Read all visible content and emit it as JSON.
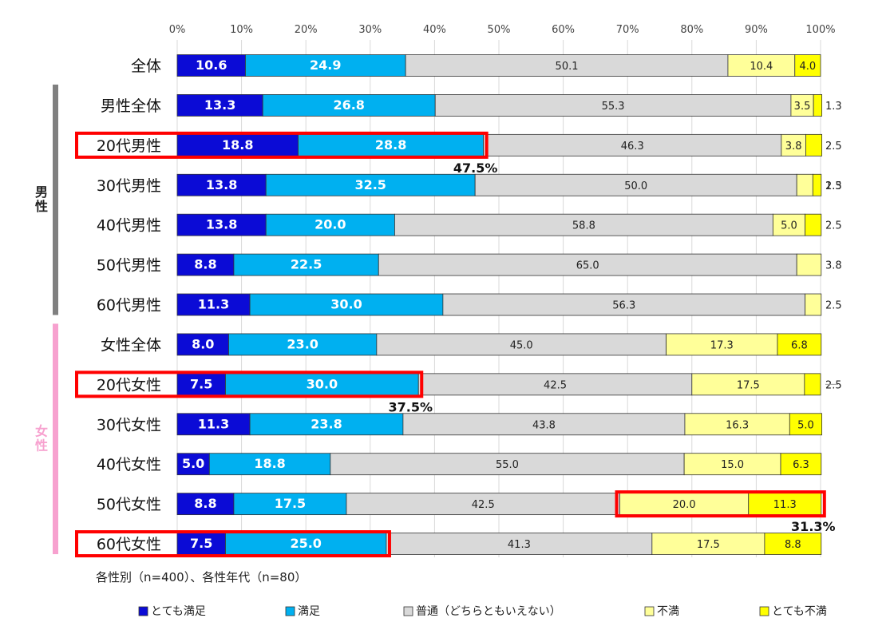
{
  "chart_data": {
    "type": "bar",
    "stacked": true,
    "orientation": "horizontal",
    "percent_axis": {
      "min": 0,
      "max": 100,
      "ticks": [
        "0%",
        "10%",
        "20%",
        "30%",
        "40%",
        "50%",
        "60%",
        "70%",
        "80%",
        "90%",
        "100%"
      ]
    },
    "categories": [
      "全体",
      "男性全体",
      "20代男性",
      "30代男性",
      "40代男性",
      "50代男性",
      "60代男性",
      "女性全体",
      "20代女性",
      "30代女性",
      "40代女性",
      "50代女性",
      "60代女性"
    ],
    "series": [
      {
        "name": "とても満足",
        "color": "#0b0bd6",
        "values": [
          10.6,
          13.3,
          18.8,
          13.8,
          13.8,
          8.8,
          11.3,
          8.0,
          7.5,
          11.3,
          5.0,
          8.8,
          7.5
        ],
        "labels": [
          "10.6",
          "13.3",
          "18.8",
          "13.8",
          "13.8",
          "8.8",
          "11.3",
          "8.0",
          "7.5",
          "11.3",
          "5.0",
          "8.8",
          "7.5"
        ]
      },
      {
        "name": "満足",
        "color": "#00b0f0",
        "values": [
          24.9,
          26.8,
          28.8,
          32.5,
          20.0,
          22.5,
          30.0,
          23.0,
          30.0,
          23.8,
          18.8,
          17.5,
          25.0
        ],
        "labels": [
          "24.9",
          "26.8",
          "28.8",
          "32.5",
          "20.0",
          "22.5",
          "30.0",
          "23.0",
          "30.0",
          "23.8",
          "18.8",
          "17.5",
          "25.0"
        ]
      },
      {
        "name": "普通（どちらともいえない）",
        "color": "#d9d9d9",
        "values": [
          50.1,
          55.3,
          46.3,
          50.0,
          58.8,
          65.0,
          56.3,
          45.0,
          42.5,
          43.8,
          55.0,
          42.5,
          41.3
        ],
        "labels": [
          "50.1",
          "55.3",
          "46.3",
          "50.0",
          "58.8",
          "65.0",
          "56.3",
          "45.0",
          "42.5",
          "43.8",
          "55.0",
          "42.5",
          "41.3"
        ]
      },
      {
        "name": "不満",
        "color": "#ffff99",
        "values": [
          10.4,
          3.5,
          3.8,
          2.5,
          5.0,
          3.8,
          2.5,
          17.3,
          17.5,
          16.3,
          15.0,
          20.0,
          17.5
        ],
        "labels": [
          "10.4",
          "3.5",
          "3.8",
          "2.5",
          "5.0",
          "3.8",
          "2.5",
          "17.3",
          "17.5",
          "16.3",
          "15.0",
          "20.0",
          "17.5"
        ]
      },
      {
        "name": "とても不満",
        "color": "#ffff00",
        "values": [
          4.0,
          1.3,
          2.5,
          1.3,
          2.5,
          0,
          0,
          6.8,
          2.5,
          5.0,
          6.3,
          11.3,
          8.8
        ],
        "labels": [
          "4.0",
          "1.3",
          "2.5",
          "1.3",
          "2.5",
          "",
          "",
          "6.8",
          "2.5",
          "5.0",
          "6.3",
          "11.3",
          "8.8"
        ]
      }
    ],
    "groups": [
      {
        "label": "男性",
        "color": "#808080",
        "first": 1,
        "last": 6
      },
      {
        "label": "女性",
        "color": "#f7a1cf",
        "first": 7,
        "last": 12
      }
    ],
    "highlights": [
      {
        "row": 2,
        "from_series": 0,
        "to_series": 1,
        "include_category": true,
        "sum_label": "47.5%"
      },
      {
        "row": 8,
        "from_series": 0,
        "to_series": 1,
        "include_category": true,
        "sum_label": "37.5%"
      },
      {
        "row": 11,
        "from_series": 3,
        "to_series": 4,
        "include_category": false,
        "sum_label": "31.3%"
      },
      {
        "row": 12,
        "from_series": 0,
        "to_series": 1,
        "include_category": true,
        "sum_label": ""
      }
    ],
    "highlight_color": "#ff0000",
    "legend_position": "bottom"
  },
  "note": "各性別（n=400）、各性年代（n=80）"
}
